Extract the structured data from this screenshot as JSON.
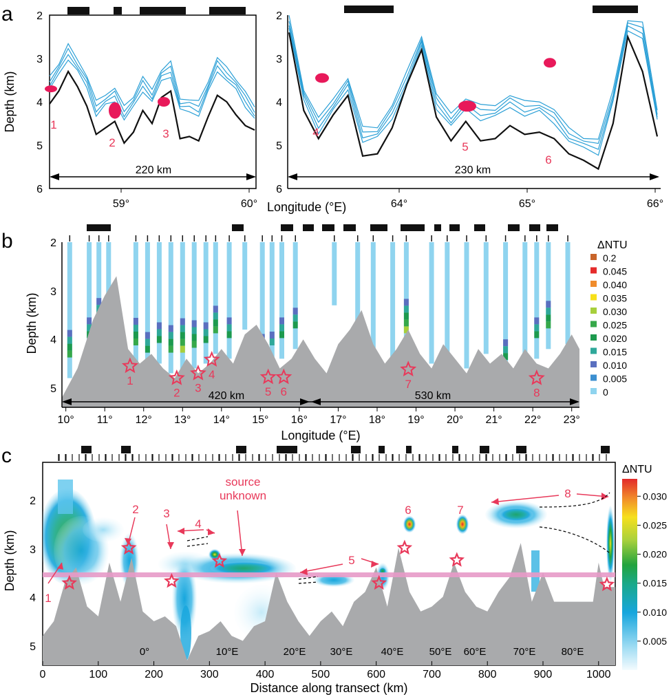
{
  "chart_data": [
    {
      "panel": "a",
      "type": "line",
      "subplots": [
        {
          "x_ticks": [
            "59°",
            "60°"
          ],
          "y_ticks": [
            "2",
            "3",
            "4",
            "5",
            "6"
          ],
          "ylabel": "Depth (km)",
          "ylim": [
            2,
            6
          ],
          "distance_label": "220 km",
          "series": [
            {
              "values": [
                4.05,
                3.75,
                3.3,
                3.65,
                4.1,
                4.75,
                4.6,
                4.45,
                4.95,
                4.7,
                4.2,
                4.5,
                3.9,
                3.75,
                4.85,
                4.8,
                4.9,
                4.35,
                3.85,
                4.0,
                4.3,
                4.55,
                4.65
              ]
            },
            {
              "values": [
                3.5,
                3.2,
                2.8,
                3.1,
                3.5,
                4.1,
                3.9,
                3.8,
                4.2,
                3.95,
                3.55,
                3.8,
                3.35,
                3.2,
                4.0,
                4.05,
                4.1,
                3.6,
                3.1,
                3.3,
                3.55,
                3.9,
                4.2
              ]
            }
          ],
          "markers": [
            {
              "label": "1",
              "depth": 3.7
            },
            {
              "label": "2",
              "depth": 4.2
            },
            {
              "label": "3",
              "depth": 4.0
            }
          ]
        },
        {
          "x_ticks": [
            "64°",
            "65°",
            "66°"
          ],
          "y_ticks": [
            "2",
            "3",
            "4",
            "5",
            "6"
          ],
          "xlabel": "Longitude (°E)",
          "ylim": [
            2,
            6
          ],
          "distance_label": "230 km",
          "series": [
            {
              "values": [
                2.4,
                4.2,
                4.85,
                4.3,
                3.85,
                5.25,
                5.2,
                4.6,
                3.6,
                2.8,
                4.35,
                4.9,
                4.45,
                4.9,
                4.85,
                4.55,
                4.75,
                4.7,
                4.85,
                5.2,
                5.35,
                5.55,
                4.5,
                2.5,
                3.3,
                4.8
              ]
            },
            {
              "values": [
                2.1,
                3.8,
                4.5,
                4.0,
                3.55,
                4.7,
                4.65,
                4.2,
                3.4,
                2.55,
                3.95,
                4.35,
                4.0,
                4.2,
                4.15,
                3.95,
                4.1,
                4.05,
                4.3,
                4.7,
                4.9,
                5.0,
                3.8,
                2.2,
                2.3,
                4.25
              ]
            }
          ],
          "markers": [
            {
              "label": "4",
              "depth": 3.45
            },
            {
              "label": "5",
              "depth": 4.1
            },
            {
              "label": "6",
              "depth": 3.1
            }
          ]
        }
      ]
    },
    {
      "panel": "b",
      "type": "area",
      "x_ticks": [
        "10°",
        "11°",
        "12°",
        "13°",
        "14°",
        "15°",
        "16°",
        "17°",
        "18°",
        "19°",
        "20°",
        "21°",
        "22°",
        "23°"
      ],
      "y_ticks": [
        "2",
        "3",
        "4",
        "5"
      ],
      "xlabel": "Longitude (°E)",
      "ylabel": "Depth (km)",
      "ylim": [
        2,
        5.4
      ],
      "xlim": [
        9.9,
        23.2
      ],
      "distance_labels": [
        "420 km",
        "530 km"
      ],
      "legend_title": "ΔNTU",
      "legend": [
        "0.2",
        "0.045",
        "0.040",
        "0.035",
        "0.030",
        "0.025",
        "0.020",
        "0.015",
        "0.010",
        "0.005",
        "0"
      ],
      "legend_colors": [
        "#c8642a",
        "#e52b2b",
        "#f08c2c",
        "#f7e01a",
        "#a7cf3c",
        "#36a84a",
        "#1d9a4e",
        "#2fa89a",
        "#5a6fbf",
        "#3c8fd0",
        "#8fd4ef"
      ],
      "seafloor": {
        "x": [
          9.9,
          10.3,
          10.7,
          11.0,
          11.3,
          11.6,
          11.9,
          12.2,
          12.5,
          12.8,
          13.1,
          13.4,
          13.7,
          14.0,
          14.3,
          14.6,
          14.9,
          15.2,
          15.5,
          15.8,
          16.1,
          16.4,
          16.7,
          17.0,
          17.3,
          17.6,
          17.9,
          18.2,
          18.5,
          18.8,
          19.1,
          19.4,
          19.7,
          20.0,
          20.3,
          20.6,
          20.9,
          21.2,
          21.5,
          21.8,
          22.1,
          22.4,
          22.7,
          23.0,
          23.2
        ],
        "depth": [
          5.2,
          4.6,
          3.6,
          3.1,
          2.7,
          4.2,
          4.5,
          4.3,
          4.6,
          4.8,
          4.4,
          4.7,
          4.5,
          4.2,
          4.5,
          3.9,
          3.7,
          4.1,
          4.6,
          4.4,
          4.0,
          4.4,
          4.7,
          4.1,
          3.8,
          3.4,
          4.1,
          4.5,
          4.2,
          3.8,
          4.3,
          4.6,
          4.1,
          4.4,
          4.7,
          4.2,
          4.5,
          4.3,
          4.6,
          4.2,
          4.5,
          4.6,
          4.3,
          3.9,
          4.2
        ]
      },
      "profiles": [
        {
          "lon": 10.1,
          "bottom": 4.8,
          "max_index": 3
        },
        {
          "lon": 10.6,
          "bottom": 4.4,
          "max_index": 2
        },
        {
          "lon": 10.85,
          "bottom": 4.0,
          "max_index": 2
        },
        {
          "lon": 11.1,
          "bottom": 3.8,
          "max_index": 0
        },
        {
          "lon": 11.8,
          "bottom": 4.55,
          "max_index": 3
        },
        {
          "lon": 12.1,
          "bottom": 4.7,
          "max_index": 2
        },
        {
          "lon": 12.4,
          "bottom": 4.5,
          "max_index": 2
        },
        {
          "lon": 12.7,
          "bottom": 4.7,
          "max_index": 3
        },
        {
          "lon": 13.0,
          "bottom": 4.7,
          "max_index": 4
        },
        {
          "lon": 13.3,
          "bottom": 4.6,
          "max_index": 3
        },
        {
          "lon": 13.6,
          "bottom": 4.5,
          "max_index": 2
        },
        {
          "lon": 13.85,
          "bottom": 4.3,
          "max_index": 3
        },
        {
          "lon": 14.2,
          "bottom": 4.4,
          "max_index": 2
        },
        {
          "lon": 14.6,
          "bottom": 3.8,
          "max_index": 0
        },
        {
          "lon": 15.05,
          "bottom": 4.6,
          "max_index": 1
        },
        {
          "lon": 15.3,
          "bottom": 4.55,
          "max_index": 1
        },
        {
          "lon": 15.55,
          "bottom": 4.4,
          "max_index": 2
        },
        {
          "lon": 15.9,
          "bottom": 4.2,
          "max_index": 2
        },
        {
          "lon": 16.9,
          "bottom": 3.3,
          "max_index": 0
        },
        {
          "lon": 17.5,
          "bottom": 3.7,
          "max_index": 0
        },
        {
          "lon": 17.9,
          "bottom": 4.3,
          "max_index": 0
        },
        {
          "lon": 18.4,
          "bottom": 4.4,
          "max_index": 0
        },
        {
          "lon": 18.75,
          "bottom": 4.3,
          "max_index": 4
        },
        {
          "lon": 19.4,
          "bottom": 4.5,
          "max_index": 0
        },
        {
          "lon": 19.8,
          "bottom": 4.9,
          "max_index": 0
        },
        {
          "lon": 20.3,
          "bottom": 4.6,
          "max_index": 0
        },
        {
          "lon": 20.8,
          "bottom": 4.3,
          "max_index": 0
        },
        {
          "lon": 21.3,
          "bottom": 4.85,
          "max_index": 2
        },
        {
          "lon": 21.8,
          "bottom": 4.6,
          "max_index": 0
        },
        {
          "lon": 22.1,
          "bottom": 4.4,
          "max_index": 2
        },
        {
          "lon": 22.4,
          "bottom": 4.2,
          "max_index": 3
        },
        {
          "lon": 22.9,
          "bottom": 4.1,
          "max_index": 0
        }
      ],
      "markers": [
        {
          "label": "1",
          "lon": 11.65,
          "depth": 4.55
        },
        {
          "label": "2",
          "lon": 12.85,
          "depth": 4.8
        },
        {
          "label": "3",
          "lon": 13.4,
          "depth": 4.7
        },
        {
          "label": "4",
          "lon": 13.75,
          "depth": 4.42
        },
        {
          "label": "5",
          "lon": 15.2,
          "depth": 4.78
        },
        {
          "label": "6",
          "lon": 15.6,
          "depth": 4.78
        },
        {
          "label": "7",
          "lon": 18.8,
          "depth": 4.62
        },
        {
          "label": "8",
          "lon": 22.1,
          "depth": 4.8
        }
      ]
    },
    {
      "panel": "c",
      "type": "heatmap",
      "x_ticks": [
        "0",
        "100",
        "200",
        "300",
        "400",
        "500",
        "600",
        "700",
        "800",
        "900",
        "1000"
      ],
      "y_ticks": [
        "2",
        "3",
        "4",
        "5"
      ],
      "xlabel": "Distance along transect (km)",
      "ylabel": "Depth (km)",
      "xlim": [
        0,
        1030
      ],
      "ylim": [
        1.35,
        5.5
      ],
      "colorbar_title": "ΔNTU",
      "colorbar_ticks": [
        "0.030",
        "0.025",
        "0.020",
        "0.015",
        "0.010",
        "0.005"
      ],
      "longitude_labels": [
        "0°",
        "10°E",
        "20°E",
        "30°E",
        "40°E",
        "50°E",
        "60°E",
        "70°E",
        "80°E"
      ],
      "annotation": "source unknown",
      "reference_depth": 3.62,
      "plumes": [
        {
          "label": "1",
          "x": 40,
          "depth": 3.1,
          "max_dntu": 0.02
        },
        {
          "label": "2",
          "x": 155,
          "depth": 3.1,
          "max_dntu": 0.01
        },
        {
          "label": "3",
          "x": 245,
          "depth": 3.05,
          "max_dntu": 0.008
        },
        {
          "label": "4",
          "x": 310,
          "depth": 2.8,
          "max_dntu": 0.03
        },
        {
          "label": "5",
          "x": 560,
          "depth": 3.25,
          "max_dntu": 0.012
        },
        {
          "label": "6",
          "x": 655,
          "depth": 2.55,
          "max_dntu": 0.032
        },
        {
          "label": "7",
          "x": 750,
          "depth": 2.6,
          "max_dntu": 0.032
        },
        {
          "label": "8",
          "x": 1010,
          "depth": 2.6,
          "max_dntu": 0.03
        }
      ],
      "vent_markers": [
        {
          "x": 48,
          "depth": 3.82
        },
        {
          "x": 155,
          "depth": 3.1
        },
        {
          "x": 232,
          "depth": 3.78
        },
        {
          "x": 318,
          "depth": 3.37
        },
        {
          "x": 605,
          "depth": 3.82
        },
        {
          "x": 651,
          "depth": 3.1
        },
        {
          "x": 745,
          "depth": 3.35
        },
        {
          "x": 1015,
          "depth": 3.85
        }
      ],
      "seafloor": {
        "x": [
          0,
          20,
          40,
          60,
          80,
          100,
          120,
          140,
          160,
          180,
          200,
          220,
          240,
          260,
          280,
          300,
          320,
          340,
          360,
          380,
          400,
          420,
          440,
          460,
          480,
          500,
          520,
          540,
          560,
          580,
          600,
          620,
          640,
          660,
          680,
          700,
          720,
          740,
          760,
          780,
          800,
          820,
          840,
          860,
          880,
          900,
          920,
          990,
          1000,
          1010,
          1030
        ],
        "depth": [
          4.9,
          4.6,
          3.8,
          3.5,
          4.3,
          4.5,
          3.4,
          4.2,
          3.3,
          4.4,
          4.6,
          4.5,
          4.7,
          5.4,
          4.9,
          4.8,
          4.6,
          4.9,
          5.0,
          4.7,
          4.6,
          3.6,
          4.2,
          4.6,
          4.9,
          4.6,
          4.4,
          4.7,
          4.2,
          4.0,
          3.5,
          4.3,
          3.1,
          4.0,
          4.4,
          4.3,
          4.1,
          3.4,
          4.0,
          4.3,
          4.4,
          4.0,
          3.7,
          3.0,
          4.2,
          3.6,
          4.2,
          4.2,
          3.4,
          3.9,
          3.9
        ]
      }
    }
  ]
}
